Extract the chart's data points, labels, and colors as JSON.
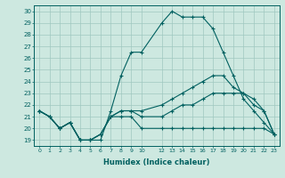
{
  "xlabel": "Humidex (Indice chaleur)",
  "bg_color": "#cde8e0",
  "grid_color": "#a0c8c0",
  "line_color": "#006060",
  "xlim": [
    -0.5,
    23.5
  ],
  "ylim": [
    18.5,
    30.5
  ],
  "xticks": [
    0,
    1,
    2,
    3,
    4,
    5,
    6,
    7,
    8,
    9,
    10,
    12,
    13,
    14,
    15,
    16,
    17,
    18,
    19,
    20,
    21,
    22,
    23
  ],
  "yticks": [
    19,
    20,
    21,
    22,
    23,
    24,
    25,
    26,
    27,
    28,
    29,
    30
  ],
  "x_indices": [
    0,
    1,
    2,
    3,
    4,
    5,
    6,
    7,
    8,
    9,
    10,
    12,
    13,
    14,
    15,
    16,
    17,
    18,
    19,
    20,
    21,
    22,
    23
  ],
  "series": [
    [
      21.5,
      21.0,
      20.0,
      20.5,
      19.0,
      19.0,
      19.0,
      21.5,
      24.5,
      26.5,
      26.5,
      29.0,
      30.0,
      29.5,
      29.5,
      29.5,
      28.5,
      26.5,
      24.5,
      22.5,
      21.5,
      20.5,
      19.5
    ],
    [
      21.5,
      21.0,
      20.0,
      20.5,
      19.0,
      19.0,
      19.5,
      21.0,
      21.5,
      21.5,
      21.5,
      22.0,
      22.5,
      23.0,
      23.5,
      24.0,
      24.5,
      24.5,
      23.5,
      23.0,
      22.0,
      21.5,
      19.5
    ],
    [
      21.5,
      21.0,
      20.0,
      20.5,
      19.0,
      19.0,
      19.5,
      21.0,
      21.0,
      21.0,
      20.0,
      20.0,
      20.0,
      20.0,
      20.0,
      20.0,
      20.0,
      20.0,
      20.0,
      20.0,
      20.0,
      20.0,
      19.5
    ],
    [
      21.5,
      21.0,
      20.0,
      20.5,
      19.0,
      19.0,
      19.5,
      21.0,
      21.5,
      21.5,
      21.0,
      21.0,
      21.5,
      22.0,
      22.0,
      22.5,
      23.0,
      23.0,
      23.0,
      23.0,
      22.5,
      21.5,
      19.5
    ]
  ]
}
